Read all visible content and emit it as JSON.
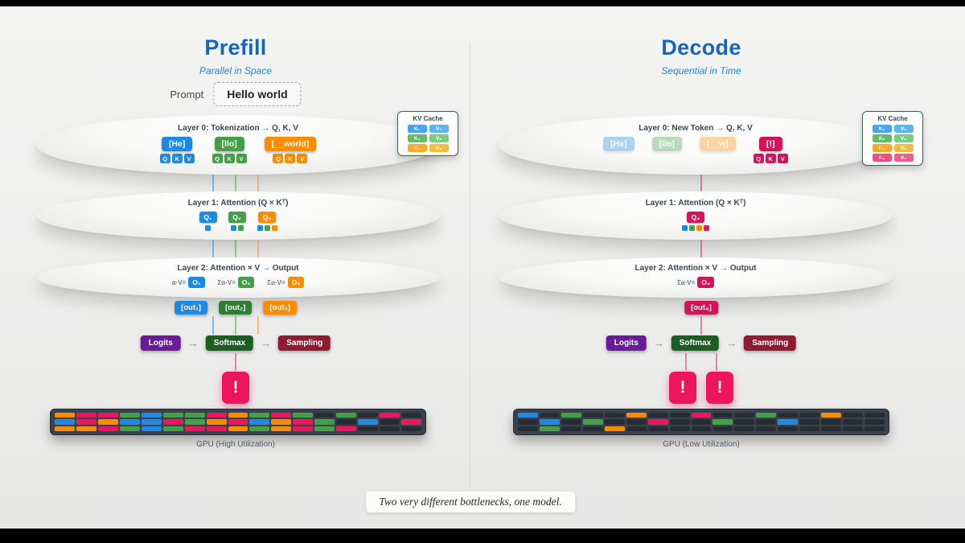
{
  "colors": {
    "b": "#1e88e5",
    "g": "#43a047",
    "o": "#fb8c00",
    "p": "#ec155e",
    "pk": "#d4145a",
    "d": "#252b33",
    "title_blue": "#1565c0",
    "subtitle_blue": "#1e88e5",
    "purple": "#6a1b9a",
    "dark_green": "#1b5e20",
    "dark_red": "#8e1b2f",
    "out_green": "#2e7d32"
  },
  "qkv": [
    "Q",
    "K",
    "V"
  ],
  "footer": {
    "note": "Two very different bottlenecks, one model."
  },
  "prefill": {
    "title": "Prefill",
    "subtitle": "Parallel in Space",
    "prompt": {
      "label": "Prompt",
      "value": "Hello world"
    },
    "layer0": {
      "title": "Layer 0: Tokenization → Q, K, V",
      "tokens": [
        {
          "label": "[He]",
          "color": "#1e88e5"
        },
        {
          "label": "[llo]",
          "color": "#43a047"
        },
        {
          "label": "[__world]",
          "color": "#fb8c00"
        }
      ]
    },
    "kv_cache": {
      "title": "KV Cache",
      "rows": [
        {
          "k": "K₁",
          "v": "V₁",
          "color": "#42a5f5"
        },
        {
          "k": "K₂",
          "v": "V₂",
          "color": "#66bb6a"
        },
        {
          "k": "K₃",
          "v": "V₃",
          "color": "#ffa726"
        }
      ]
    },
    "layer1": {
      "title": "Layer 1: Attention (Q × Kᵀ)",
      "queries": [
        {
          "label": "Q₁",
          "color": "#1e88e5",
          "cells": [
            "b"
          ]
        },
        {
          "label": "Q₂",
          "color": "#43a047",
          "cells": [
            "b",
            "g"
          ]
        },
        {
          "label": "Q₃",
          "color": "#fb8c00",
          "cells": [
            "b",
            "g",
            "o"
          ]
        }
      ]
    },
    "layer2": {
      "title": "Layer 2: Attention × V → Output",
      "outputs": [
        {
          "formula": "α·V=",
          "label": "O₁",
          "color": "#1e88e5"
        },
        {
          "formula": "Σα·V=",
          "label": "O₂",
          "color": "#43a047"
        },
        {
          "formula": "Σα·V=",
          "label": "O₃",
          "color": "#fb8c00"
        }
      ]
    },
    "outs": [
      {
        "label": "[out₁]",
        "color": "#1e88e5"
      },
      {
        "label": "[out₂]",
        "color": "#2e7d32"
      },
      {
        "label": "[out₃]",
        "color": "#fb8c00"
      }
    ],
    "pipeline": {
      "logits": "Logits",
      "softmax": "Softmax",
      "sampling": "Sampling",
      "arrow": "→"
    },
    "sampled": [
      "!"
    ],
    "gpu": {
      "label": "GPU (High Utilization)",
      "grid": [
        [
          "o",
          "p",
          "p",
          "g",
          "b",
          "g",
          "g",
          "p",
          "o",
          "g",
          "p",
          "g",
          "d",
          "g",
          "d",
          "p",
          "d"
        ],
        [
          "b",
          "p",
          "o",
          "b",
          "b",
          "p",
          "g",
          "o",
          "p",
          "b",
          "o",
          "p",
          "g",
          "d",
          "b",
          "d",
          "p"
        ],
        [
          "o",
          "o",
          "p",
          "g",
          "b",
          "g",
          "p",
          "p",
          "o",
          "g",
          "o",
          "p",
          "g",
          "p",
          "d",
          "d",
          "d"
        ]
      ]
    }
  },
  "decode": {
    "title": "Decode",
    "subtitle": "Sequential in Time",
    "layer0": {
      "title": "Layer 0: New Token → Q, K, V",
      "cached_tokens": [
        {
          "label": "[He]",
          "color": "#1e88e5"
        },
        {
          "label": "[llo]",
          "color": "#43a047"
        },
        {
          "label": "[__w]",
          "color": "#fb8c00"
        }
      ],
      "new_token": {
        "label": "[!]",
        "color": "#d4145a"
      }
    },
    "kv_cache": {
      "title": "KV Cache",
      "rows": [
        {
          "k": "K₁",
          "v": "V₁",
          "color": "#42a5f5"
        },
        {
          "k": "K₂",
          "v": "V₂",
          "color": "#66bb6a"
        },
        {
          "k": "K₃",
          "v": "V₃",
          "color": "#ffa726"
        },
        {
          "k": "K₄",
          "v": "V₄",
          "color": "#ec4d82"
        }
      ]
    },
    "layer1": {
      "title": "Layer 1: Attention (Q × Kᵀ)",
      "queries": [
        {
          "label": "Q₄",
          "color": "#d4145a",
          "cells": [
            "b",
            "g",
            "o",
            "p"
          ]
        }
      ]
    },
    "layer2": {
      "title": "Layer 2: Attention × V → Output",
      "outputs": [
        {
          "formula": "Σα·V=",
          "label": "O₄",
          "color": "#d4145a"
        }
      ]
    },
    "outs": [
      {
        "label": "[out₄]",
        "color": "#d4145a"
      }
    ],
    "pipeline": {
      "logits": "Logits",
      "softmax": "Softmax",
      "sampling": "Sampling",
      "arrow": "→"
    },
    "sampled": [
      "!",
      "!"
    ],
    "gpu": {
      "label": "GPU (Low Utilization)",
      "grid": [
        [
          "b",
          "d",
          "g",
          "d",
          "d",
          "o",
          "d",
          "d",
          "p",
          "d",
          "d",
          "g",
          "d",
          "d",
          "o",
          "d",
          "d"
        ],
        [
          "d",
          "b",
          "d",
          "g",
          "d",
          "d",
          "p",
          "d",
          "d",
          "g",
          "d",
          "d",
          "b",
          "d",
          "d",
          "d",
          "d"
        ],
        [
          "d",
          "g",
          "d",
          "d",
          "o",
          "d",
          "d",
          "d",
          "d",
          "d",
          "d",
          "d",
          "d",
          "d",
          "d",
          "d",
          "d"
        ]
      ]
    }
  }
}
